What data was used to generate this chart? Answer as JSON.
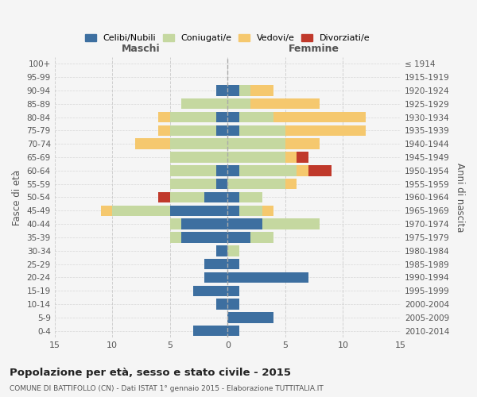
{
  "age_groups": [
    "0-4",
    "5-9",
    "10-14",
    "15-19",
    "20-24",
    "25-29",
    "30-34",
    "35-39",
    "40-44",
    "45-49",
    "50-54",
    "55-59",
    "60-64",
    "65-69",
    "70-74",
    "75-79",
    "80-84",
    "85-89",
    "90-94",
    "95-99",
    "100+"
  ],
  "birth_years": [
    "2010-2014",
    "2005-2009",
    "2000-2004",
    "1995-1999",
    "1990-1994",
    "1985-1989",
    "1980-1984",
    "1975-1979",
    "1970-1974",
    "1965-1969",
    "1960-1964",
    "1955-1959",
    "1950-1954",
    "1945-1949",
    "1940-1944",
    "1935-1939",
    "1930-1934",
    "1925-1929",
    "1920-1924",
    "1915-1919",
    "≤ 1914"
  ],
  "maschi": {
    "celibi": [
      3,
      0,
      1,
      3,
      2,
      2,
      1,
      4,
      4,
      5,
      2,
      1,
      1,
      0,
      0,
      1,
      1,
      0,
      1,
      0,
      0
    ],
    "coniugati": [
      0,
      0,
      0,
      0,
      0,
      0,
      0,
      1,
      1,
      5,
      3,
      4,
      4,
      5,
      5,
      4,
      4,
      4,
      0,
      0,
      0
    ],
    "vedovi": [
      0,
      0,
      0,
      0,
      0,
      0,
      0,
      0,
      0,
      1,
      0,
      0,
      0,
      0,
      3,
      1,
      1,
      0,
      0,
      0,
      0
    ],
    "divorziati": [
      0,
      0,
      0,
      0,
      0,
      0,
      0,
      0,
      0,
      0,
      1,
      0,
      0,
      0,
      0,
      0,
      0,
      0,
      0,
      0,
      0
    ]
  },
  "femmine": {
    "nubili": [
      1,
      4,
      1,
      1,
      7,
      1,
      0,
      2,
      3,
      1,
      1,
      0,
      1,
      0,
      0,
      1,
      1,
      0,
      1,
      0,
      0
    ],
    "coniugate": [
      0,
      0,
      0,
      0,
      0,
      0,
      1,
      2,
      5,
      2,
      2,
      5,
      5,
      5,
      5,
      4,
      3,
      2,
      1,
      0,
      0
    ],
    "vedove": [
      0,
      0,
      0,
      0,
      0,
      0,
      0,
      0,
      0,
      1,
      0,
      1,
      1,
      1,
      3,
      7,
      8,
      6,
      2,
      0,
      0
    ],
    "divorziate": [
      0,
      0,
      0,
      0,
      0,
      0,
      0,
      0,
      0,
      0,
      0,
      0,
      2,
      1,
      0,
      0,
      0,
      0,
      0,
      0,
      0
    ]
  },
  "color_celibi": "#3d6fa0",
  "color_coniugati": "#c5d8a0",
  "color_vedovi": "#f5c86e",
  "color_divorziati": "#c0392b",
  "xlim": 15,
  "title": "Popolazione per età, sesso e stato civile - 2015",
  "subtitle": "COMUNE DI BATTIFOLLO (CN) - Dati ISTAT 1° gennaio 2015 - Elaborazione TUTTITALIA.IT",
  "ylabel_left": "Fasce di età",
  "ylabel_right": "Anni di nascita",
  "xlabel_maschi": "Maschi",
  "xlabel_femmine": "Femmine",
  "bg_color": "#f5f5f5"
}
